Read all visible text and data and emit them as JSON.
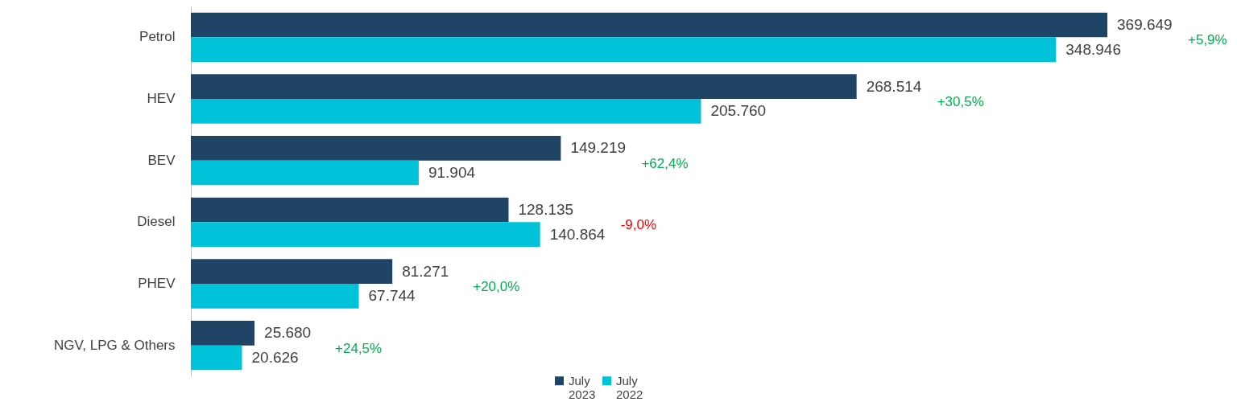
{
  "chart_data": {
    "type": "bar",
    "orientation": "horizontal",
    "categories": [
      "Petrol",
      "HEV",
      "BEV",
      "Diesel",
      "PHEV",
      "NGV, LPG & Others"
    ],
    "series": [
      {
        "name": "July 2023",
        "color": "#1f4466",
        "values": [
          369649,
          268514,
          149219,
          128135,
          81271,
          25680
        ],
        "value_labels": [
          "369.649",
          "268.514",
          "149.219",
          "128.135",
          "81.271",
          "25.680"
        ]
      },
      {
        "name": "July 2022",
        "color": "#00c2d9",
        "values": [
          348946,
          205760,
          91904,
          140864,
          67744,
          20626
        ],
        "value_labels": [
          "348.946",
          "205.760",
          "91.904",
          "140.864",
          "67.744",
          "20.626"
        ]
      }
    ],
    "legend": "bottom",
    "annotations": [
      "+5,9%",
      "+30,5%",
      "+62,4%",
      "-9,0%",
      "+20,0%",
      "+24,5%"
    ]
  }
}
